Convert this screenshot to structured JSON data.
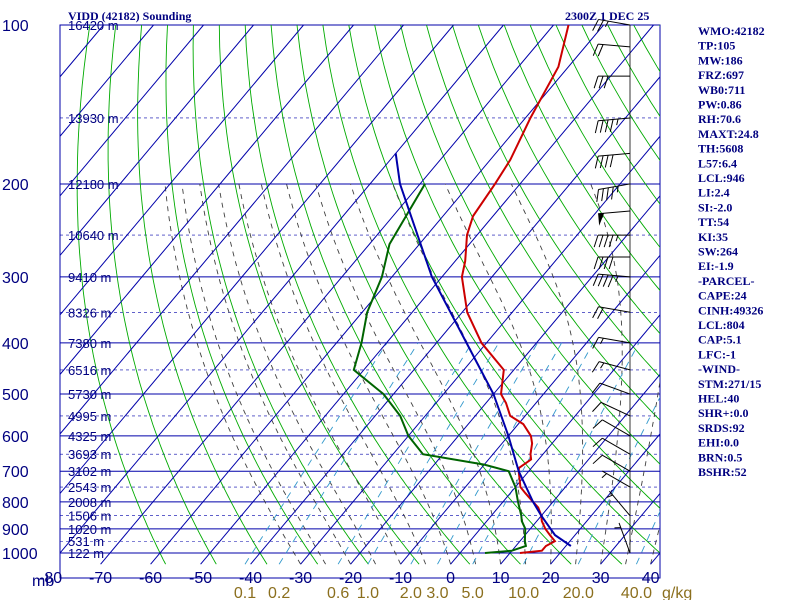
{
  "header": {
    "title": "VIDD (42182) Sounding",
    "time": "2300Z  1 DEC 25"
  },
  "indices": [
    "WMO:42182",
    "TP:105",
    "MW:186",
    "FRZ:697",
    "WB0:711",
    "PW:0.86",
    "RH:70.6",
    "MAXT:24.8",
    "TH:5608",
    "L57:6.4",
    "LCL:946",
    "LI:2.4",
    "SI:-2.0",
    "TT:54",
    "KI:35",
    "SW:264",
    "EI:-1.9",
    "-PARCEL-",
    "CAPE:24",
    "CINH:49326",
    "LCL:804",
    "CAP:5.1",
    "LFC:-1",
    "-WIND-",
    "STM:271/15",
    "HEL:40",
    "SHR+:0.0",
    "SRDS:92",
    "EHI:0.0",
    "BRN:0.5",
    "BSHR:52"
  ],
  "colors": {
    "grid": "#0000aa",
    "dry_adiabat": "#00aa00",
    "moist_adiabat": "#404040",
    "mixing_ratio": "#3399cc",
    "temperature": "#cc0000",
    "dewpoint": "#006400",
    "parcel": "#0000aa",
    "mixing_label": "#8B6F1E"
  },
  "chart_data": {
    "type": "line",
    "title": "VIDD (42182) Sounding",
    "xlabel": "",
    "ylabel": "mb",
    "x_unit_label": "mb",
    "pressure_ticks": [
      100,
      200,
      300,
      400,
      500,
      600,
      700,
      800,
      900,
      1000
    ],
    "temp_ticks": [
      -80,
      -70,
      -60,
      -50,
      -40,
      -30,
      -20,
      -10,
      0,
      10,
      20,
      30,
      40
    ],
    "xlim": [
      -80,
      40
    ],
    "ylim": [
      1050,
      100
    ],
    "height_labels": [
      {
        "p": 100,
        "h": "16420 m"
      },
      {
        "p": 150,
        "h": "13930 m"
      },
      {
        "p": 200,
        "h": "12180 m"
      },
      {
        "p": 250,
        "h": "10640 m"
      },
      {
        "p": 300,
        "h": "9410 m"
      },
      {
        "p": 350,
        "h": "8326 m"
      },
      {
        "p": 400,
        "h": "7380 m"
      },
      {
        "p": 450,
        "h": "6516 m"
      },
      {
        "p": 500,
        "h": "5730 m"
      },
      {
        "p": 550,
        "h": "4995 m"
      },
      {
        "p": 600,
        "h": "4325 m"
      },
      {
        "p": 650,
        "h": "3693 m"
      },
      {
        "p": 700,
        "h": "3102 m"
      },
      {
        "p": 750,
        "h": "2543 m"
      },
      {
        "p": 800,
        "h": "2008 m"
      },
      {
        "p": 850,
        "h": "1506 m"
      },
      {
        "p": 900,
        "h": "1020 m"
      },
      {
        "p": 950,
        "h": "531 m"
      },
      {
        "p": 1000,
        "h": "122 m"
      }
    ],
    "mixing_ratio_labels": [
      "0.1",
      "0.2",
      "0.6",
      "1.0",
      "2.0",
      "3.0",
      "5.0",
      "10.0",
      "20.0",
      "40.0"
    ],
    "mixing_ratio_values": [
      0.1,
      0.2,
      0.6,
      1.0,
      2.0,
      3.0,
      5.0,
      10.0,
      20.0,
      40.0
    ],
    "mixing_ratio_unit": "g/kg",
    "series": [
      {
        "name": "",
        "role": "temperature",
        "points": [
          [
            1000,
            12
          ],
          [
            990,
            16
          ],
          [
            970,
            16
          ],
          [
            950,
            17
          ],
          [
            925,
            15
          ],
          [
            900,
            13
          ],
          [
            870,
            11
          ],
          [
            850,
            10
          ],
          [
            820,
            8
          ],
          [
            800,
            6
          ],
          [
            770,
            3
          ],
          [
            750,
            1
          ],
          [
            700,
            -2
          ],
          [
            690,
            -2.5
          ],
          [
            665,
            -1.5
          ],
          [
            650,
            -2.5
          ],
          [
            620,
            -4
          ],
          [
            600,
            -5.5
          ],
          [
            570,
            -9
          ],
          [
            550,
            -13
          ],
          [
            520,
            -16
          ],
          [
            500,
            -18.5
          ],
          [
            450,
            -22
          ],
          [
            400,
            -31
          ],
          [
            350,
            -39
          ],
          [
            300,
            -46
          ],
          [
            280,
            -48
          ],
          [
            250,
            -52
          ],
          [
            230,
            -54
          ],
          [
            200,
            -55
          ],
          [
            180,
            -56
          ],
          [
            150,
            -59
          ],
          [
            120,
            -62
          ],
          [
            100,
            -67
          ]
        ]
      },
      {
        "name": "",
        "role": "dewpoint",
        "points": [
          [
            1000,
            5
          ],
          [
            990,
            10
          ],
          [
            970,
            12
          ],
          [
            950,
            11
          ],
          [
            925,
            10
          ],
          [
            900,
            9
          ],
          [
            870,
            7
          ],
          [
            850,
            6
          ],
          [
            800,
            3
          ],
          [
            750,
            0
          ],
          [
            700,
            -4
          ],
          [
            680,
            -10
          ],
          [
            650,
            -24
          ],
          [
            600,
            -30
          ],
          [
            550,
            -35
          ],
          [
            500,
            -42
          ],
          [
            450,
            -52
          ],
          [
            400,
            -55
          ],
          [
            350,
            -59
          ],
          [
            300,
            -62
          ],
          [
            260,
            -66
          ],
          [
            200,
            -69
          ]
        ]
      },
      {
        "name": "",
        "role": "parcel",
        "points": [
          [
            970,
            21
          ],
          [
            925,
            16
          ],
          [
            850,
            10
          ],
          [
            800,
            6
          ],
          [
            700,
            -2
          ],
          [
            600,
            -10
          ],
          [
            500,
            -20
          ],
          [
            400,
            -34
          ],
          [
            300,
            -52
          ],
          [
            200,
            -74
          ],
          [
            175,
            -80
          ]
        ]
      }
    ],
    "winds": [
      {
        "p": 100,
        "dir": 280,
        "kt": 25
      },
      {
        "p": 110,
        "dir": 275,
        "kt": 20
      },
      {
        "p": 125,
        "dir": 270,
        "kt": 30
      },
      {
        "p": 150,
        "dir": 265,
        "kt": 45
      },
      {
        "p": 175,
        "dir": 265,
        "kt": 40
      },
      {
        "p": 200,
        "dir": 260,
        "kt": 45
      },
      {
        "p": 225,
        "dir": 265,
        "kt": 50
      },
      {
        "p": 250,
        "dir": 270,
        "kt": 45
      },
      {
        "p": 275,
        "dir": 270,
        "kt": 40
      },
      {
        "p": 300,
        "dir": 275,
        "kt": 45
      },
      {
        "p": 350,
        "dir": 280,
        "kt": 20
      },
      {
        "p": 400,
        "dir": 280,
        "kt": 15
      },
      {
        "p": 450,
        "dir": 285,
        "kt": 15
      },
      {
        "p": 500,
        "dir": 290,
        "kt": 10
      },
      {
        "p": 550,
        "dir": 295,
        "kt": 10
      },
      {
        "p": 600,
        "dir": 300,
        "kt": 10
      },
      {
        "p": 650,
        "dir": 300,
        "kt": 10
      },
      {
        "p": 700,
        "dir": 300,
        "kt": 10
      },
      {
        "p": 750,
        "dir": 300,
        "kt": 5
      },
      {
        "p": 850,
        "dir": 320,
        "kt": 5
      },
      {
        "p": 1000,
        "dir": 340,
        "kt": 5
      }
    ],
    "grid": true
  }
}
